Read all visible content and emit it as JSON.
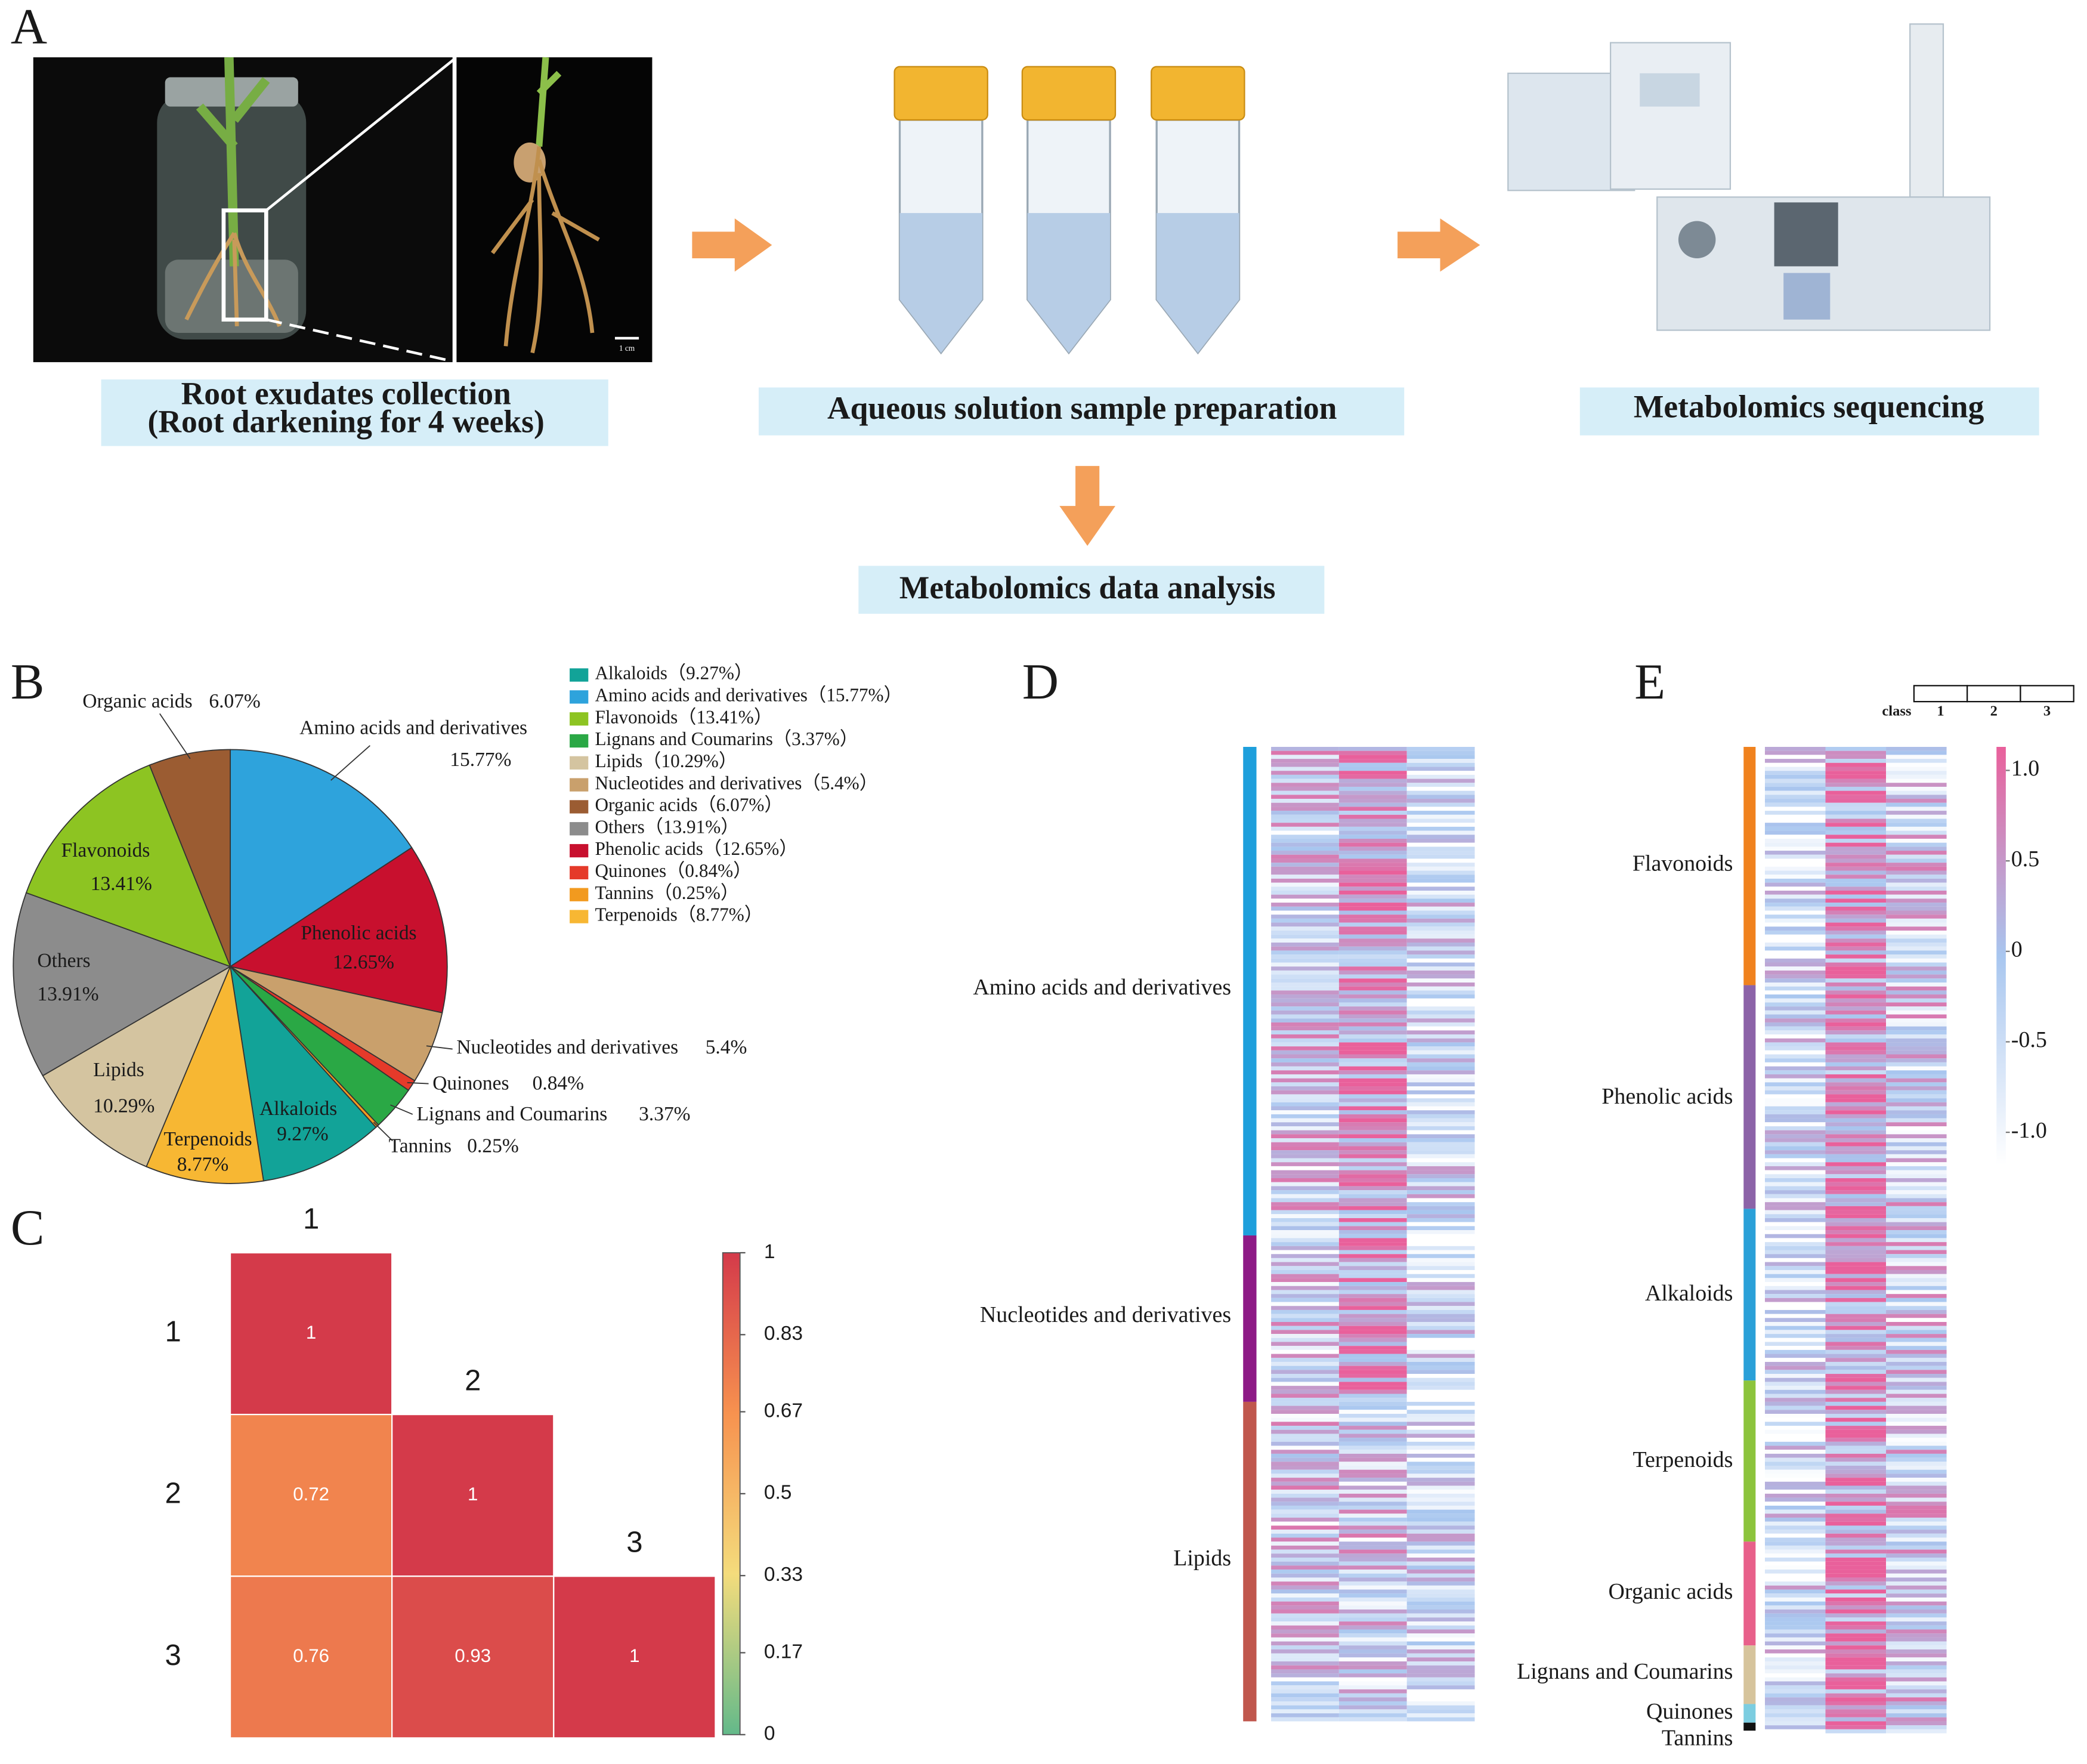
{
  "panel_labels": {
    "a": "A",
    "b": "B",
    "c": "C",
    "d": "D",
    "e": "E"
  },
  "workflow": {
    "collection": [
      "Root exudates collection",
      "(Root darkening for 4 weeks)"
    ],
    "preparation": "Aqueous solution sample preparation",
    "sequencing": "Metabolomics sequencing",
    "analysis": "Metabolomics data analysis",
    "scale_bar": "1 cm"
  },
  "chart_data": [
    {
      "type": "pie",
      "categories": [
        "Amino acids and derivatives",
        "Phenolic acids",
        "Nucleotides and derivatives",
        "Quinones",
        "Lignans and Coumarins",
        "Tannins",
        "Alkaloids",
        "Terpenoids",
        "Lipids",
        "Others",
        "Flavonoids",
        "Organic acids"
      ],
      "values": [
        15.77,
        12.65,
        5.4,
        0.84,
        3.37,
        0.25,
        9.27,
        8.77,
        10.29,
        13.91,
        13.41,
        6.07
      ],
      "value_labels": [
        "15.77%",
        "12.65%",
        "5.4%",
        "0.84%",
        "3.37%",
        "0.25%",
        "9.27%",
        "8.77%",
        "10.29%",
        "13.91%",
        "13.41%",
        "6.07%"
      ],
      "colors": [
        "#2ea3dc",
        "#c8102e",
        "#c9a06c",
        "#e53a2a",
        "#2aa845",
        "#f29a1f",
        "#12a398",
        "#f7b733",
        "#d4c4a0",
        "#8c8c8c",
        "#8dc422",
        "#9b5c32"
      ],
      "legend": [
        "Alkaloids（9.27%）",
        "Amino acids and derivatives（15.77%）",
        "Flavonoids（13.41%）",
        "Lignans and Coumarins（3.37%）",
        "Lipids（10.29%）",
        "Nucleotides and derivatives（5.4%）",
        "Organic acids（6.07%）",
        "Others（13.91%）",
        "Phenolic acids（12.65%）",
        "Quinones（0.84%）",
        "Tannins（0.25%）",
        "Terpenoids（8.77%）"
      ]
    },
    {
      "type": "heatmap",
      "row_labels": [
        "1",
        "2",
        "3"
      ],
      "col_labels": [
        "1",
        "2",
        "3"
      ],
      "values": [
        [
          1,
          null,
          null
        ],
        [
          0.72,
          1,
          null
        ],
        [
          0.76,
          0.93,
          1
        ]
      ],
      "zlim": [
        0,
        1
      ],
      "zticks": [
        0,
        0.17,
        0.33,
        0.5,
        0.67,
        0.83,
        1
      ],
      "colorscale": [
        "#63b98a",
        "#f4dc7c",
        "#f7924f",
        "#d43a4a"
      ]
    }
  ],
  "panel_d": {
    "classes": [
      "Amino acids and derivatives",
      "Nucleotides and derivatives",
      "Lipids"
    ],
    "class_colors": [
      "#1e9fdc",
      "#8e1a86",
      "#c0574d"
    ]
  },
  "panel_e": {
    "classes": [
      "Flavonoids",
      "Phenolic acids",
      "Alkaloids",
      "Terpenoids",
      "Organic acids",
      "Lignans and Coumarins",
      "Quinones",
      "Tannins"
    ],
    "class_colors": [
      "#f0821e",
      "#8c63a8",
      "#2aa0d8",
      "#8cc43c",
      "#e8608a",
      "#d6c49c",
      "#7ccde0",
      "#111111"
    ],
    "legend_title": "class",
    "samples": [
      "1",
      "2",
      "3"
    ],
    "colorbar": {
      "ylim": [
        -1.18,
        1.13
      ],
      "yticks": [
        {
          "value": 1,
          "label": "1.0"
        },
        0.5,
        0,
        -0.5,
        {
          "value": -1,
          "label": "-1.0"
        }
      ],
      "colorscale": [
        "#ffffff",
        "#a8c6ef",
        "#e9609b"
      ]
    }
  }
}
